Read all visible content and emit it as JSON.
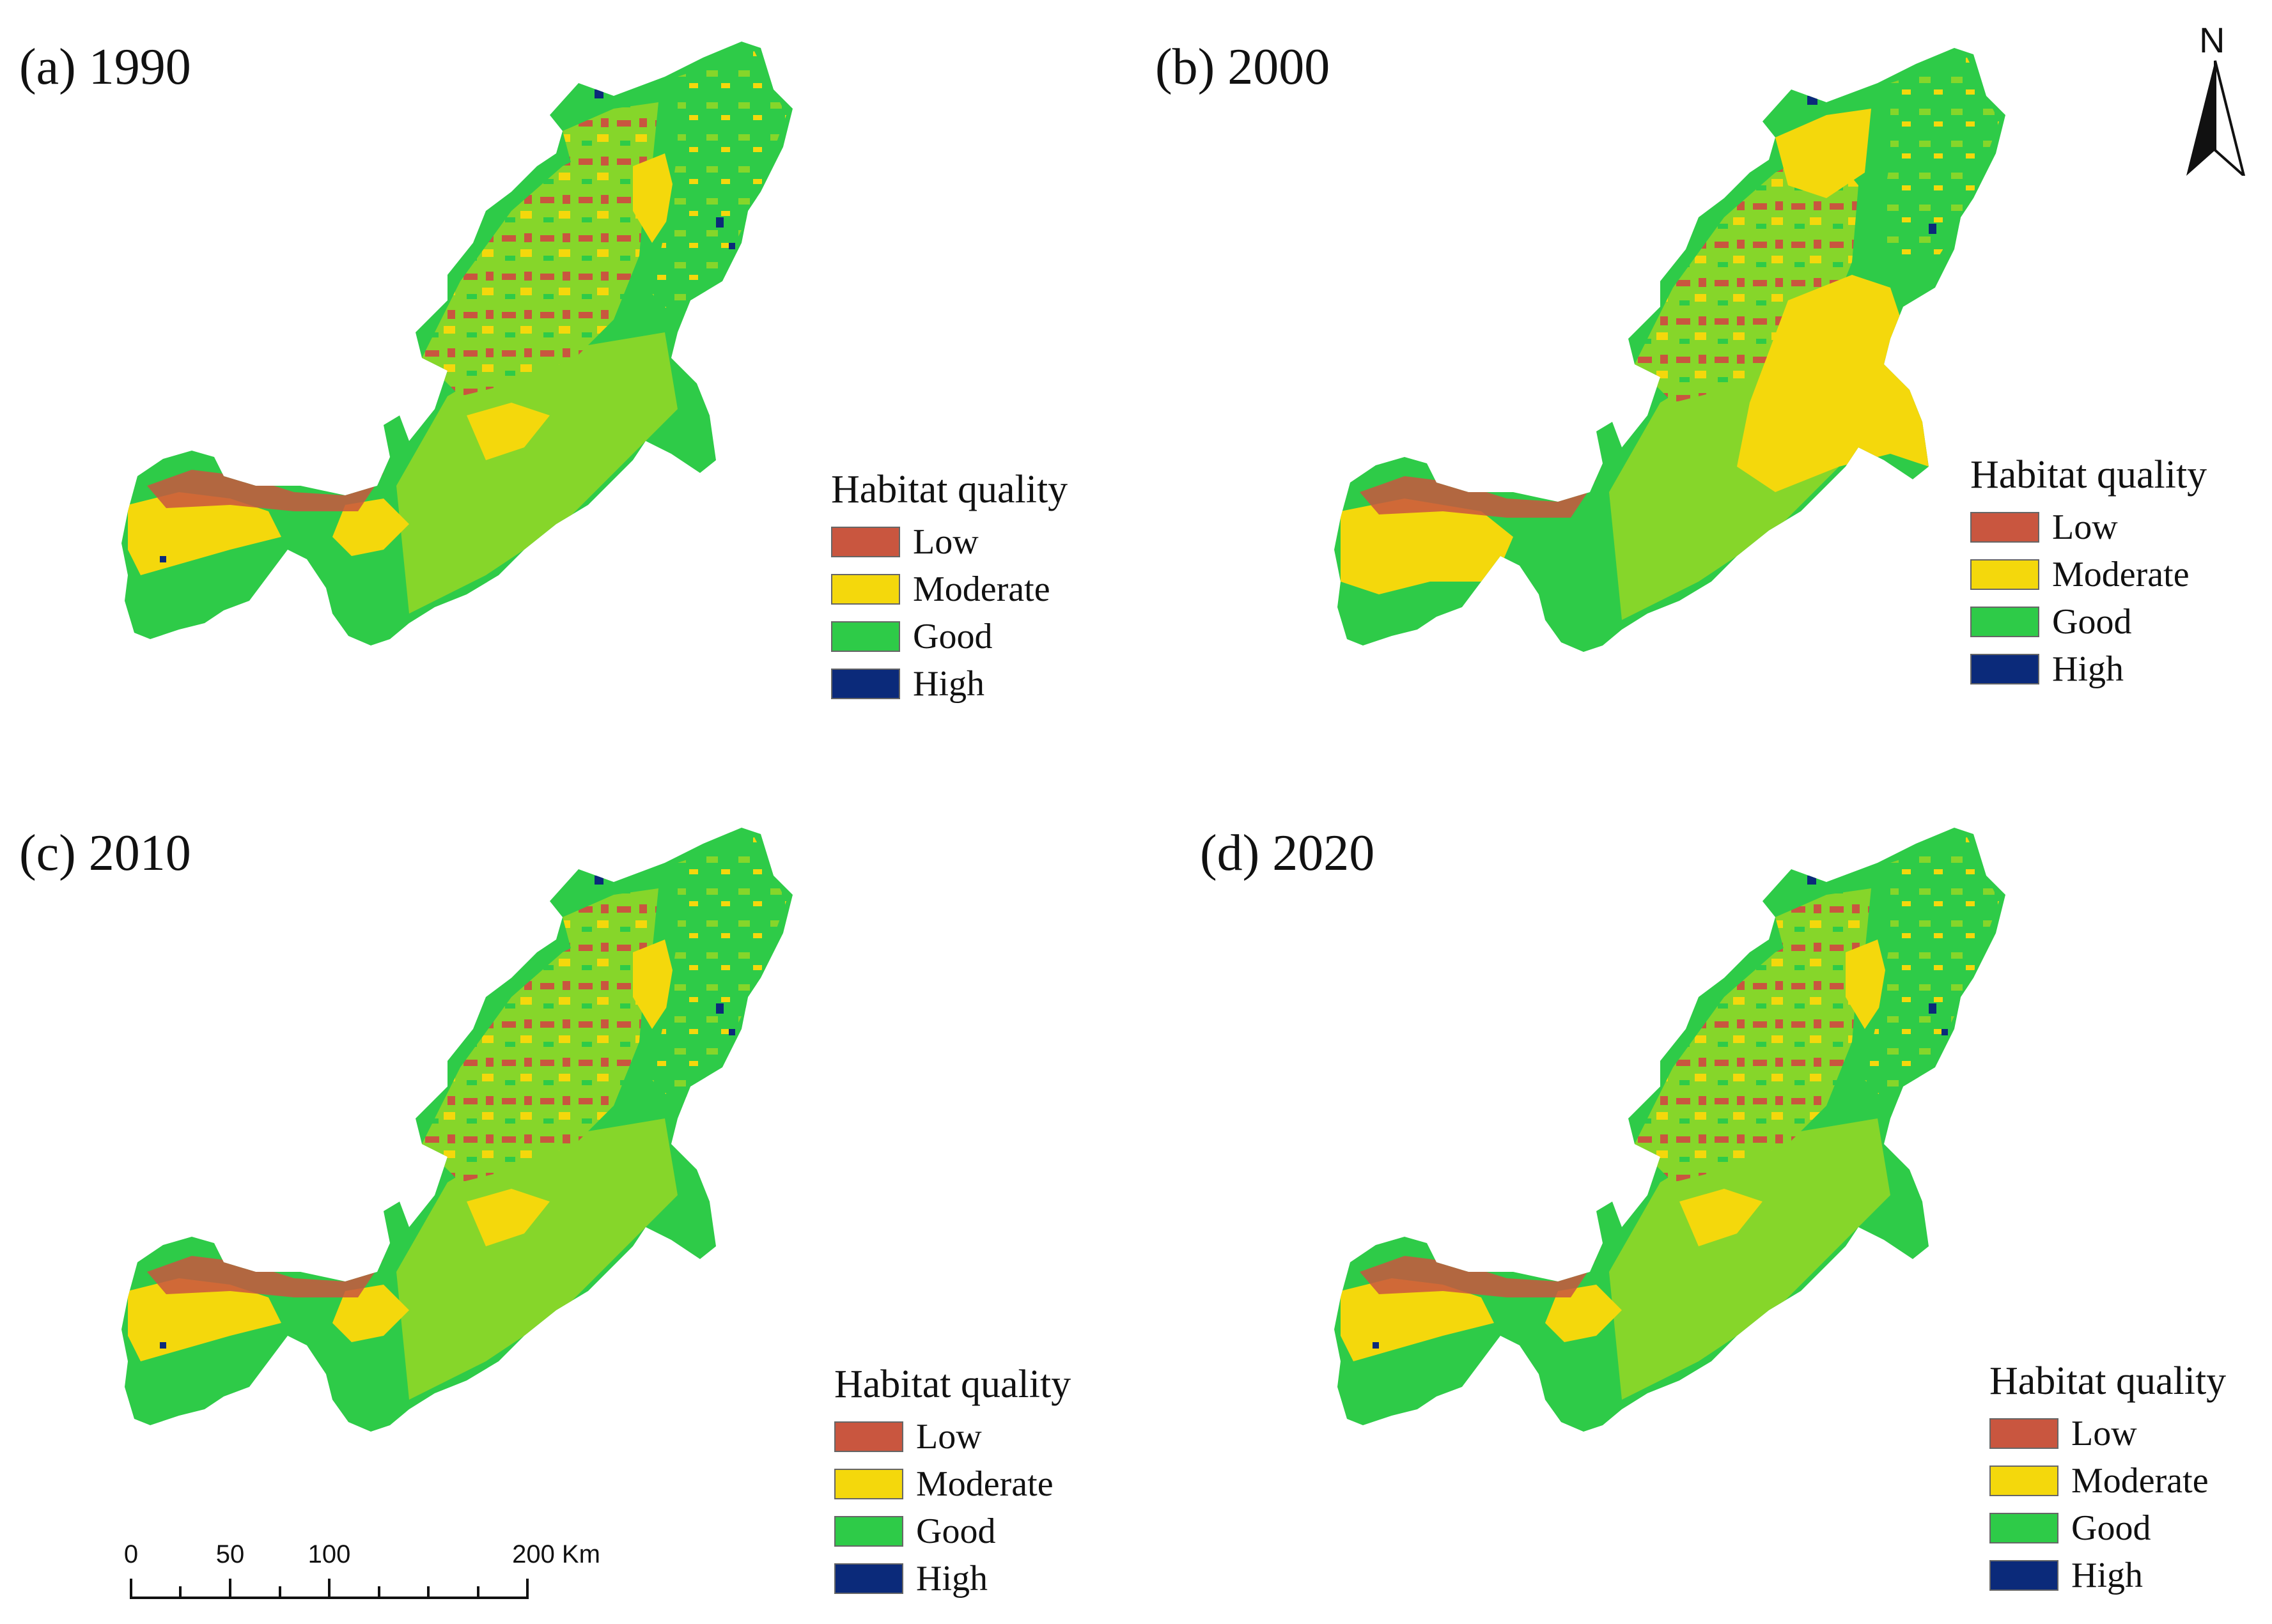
{
  "colors": {
    "low": "#c9563f",
    "moderate": "#f4d80c",
    "good": "#2ecb48",
    "good_light": "#86d62a",
    "high": "#0b2a7a"
  },
  "panels": [
    {
      "title": "(a) 1990",
      "legend": {
        "title": "Habitat quality",
        "items": [
          "Low",
          "Moderate",
          "Good",
          "High"
        ]
      }
    },
    {
      "title": "(b) 2000",
      "legend": {
        "title": "Habitat quality",
        "items": [
          "Low",
          "Moderate",
          "Good",
          "High"
        ]
      }
    },
    {
      "title": "(c) 2010",
      "legend": {
        "title": "Habitat quality",
        "items": [
          "Low",
          "Moderate",
          "Good",
          "High"
        ]
      }
    },
    {
      "title": "(d) 2020",
      "legend": {
        "title": "Habitat quality",
        "items": [
          "Low",
          "Moderate",
          "Good",
          "High"
        ]
      }
    }
  ],
  "north_arrow": {
    "label": "N"
  },
  "scale_bar": {
    "ticks": [
      "0",
      "50",
      "100",
      "200 Km"
    ]
  }
}
